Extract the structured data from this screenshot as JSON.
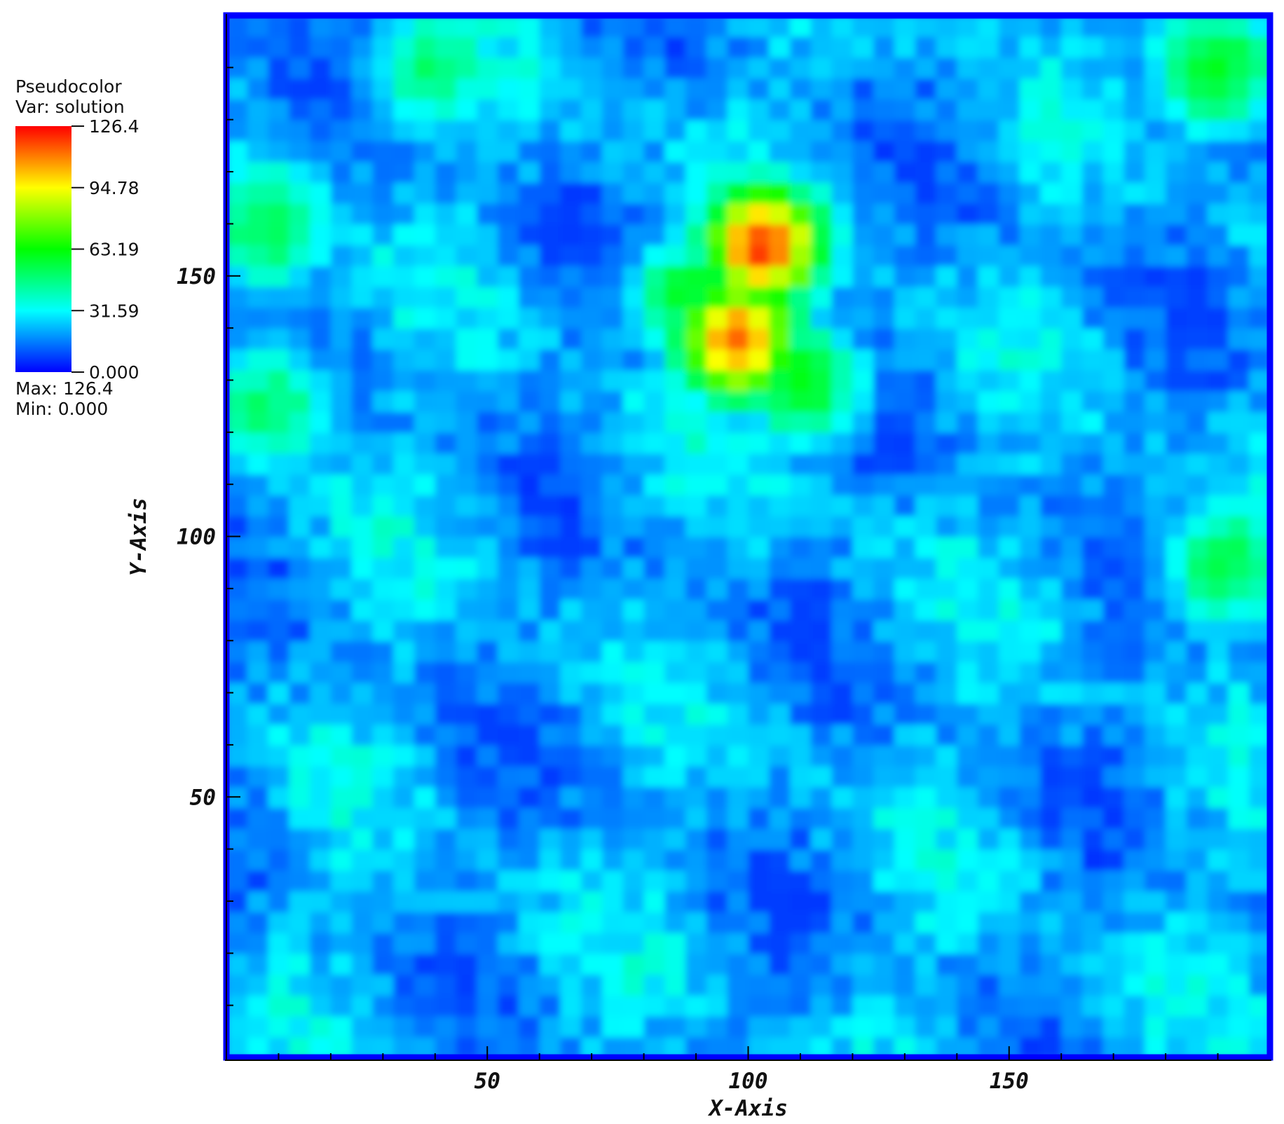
{
  "chart_data": {
    "type": "heatmap",
    "plot_type": "Pseudocolor",
    "variable_label": "Var: solution",
    "xlabel": "X-Axis",
    "ylabel": "Y-Axis",
    "xlim": [
      0,
      200
    ],
    "ylim": [
      0,
      200
    ],
    "x_ticks": [
      50,
      100,
      150
    ],
    "y_ticks": [
      50,
      100,
      150
    ],
    "x_tick_labels": [
      "50",
      "100",
      "150"
    ],
    "y_tick_labels": [
      "50",
      "100",
      "150"
    ],
    "grid": false,
    "legend_position": "left",
    "colorbar": {
      "title": "Pseudocolor",
      "subtitle": "Var: solution",
      "min": 0.0,
      "max": 126.4,
      "tick_values": [
        126.4,
        94.78,
        63.19,
        31.59,
        0.0
      ],
      "tick_labels": [
        "126.4",
        "94.78",
        "63.19",
        "31.59",
        "0.000"
      ],
      "max_label": "Max:  126.4",
      "min_label": "Min:  0.000",
      "colors": [
        "#0000ff",
        "#00ffff",
        "#00ff00",
        "#ffff00",
        "#ff0000"
      ]
    },
    "hotspots": [
      {
        "x": 103,
        "y": 156,
        "value": 115
      },
      {
        "x": 98,
        "y": 138,
        "value": 110
      },
      {
        "x": 110,
        "y": 130,
        "value": 60
      },
      {
        "x": 89,
        "y": 146,
        "value": 55
      }
    ],
    "regions_high": [
      {
        "x": 8,
        "y": 160,
        "value": 50
      },
      {
        "x": 8,
        "y": 125,
        "value": 45
      },
      {
        "x": 190,
        "y": 190,
        "value": 55
      },
      {
        "x": 192,
        "y": 95,
        "value": 50
      },
      {
        "x": 40,
        "y": 190,
        "value": 45
      }
    ]
  }
}
